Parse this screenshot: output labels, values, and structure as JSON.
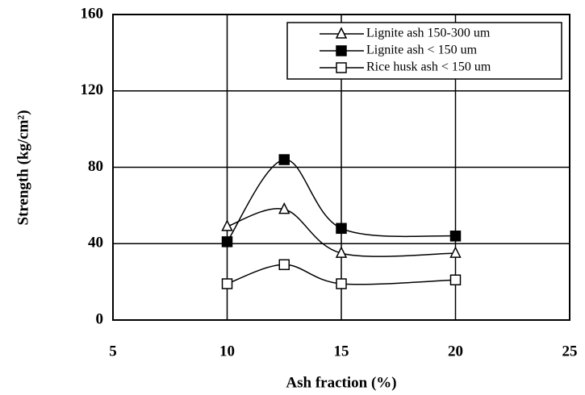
{
  "chart_data": {
    "type": "line",
    "x_label": "Ash fraction (%)",
    "y_label": "Strength (kg/cm²)",
    "xlim": [
      5,
      25
    ],
    "xticks": [
      5,
      10,
      15,
      20,
      25
    ],
    "ylim": [
      0,
      160
    ],
    "yticks": [
      0,
      40,
      80,
      120,
      160
    ],
    "grid": true,
    "legend": "top-right",
    "series": [
      {
        "name": "Lignite ash 150-300 um",
        "color": "#000000",
        "marker": "open-triangle",
        "x": [
          10,
          12.5,
          15,
          20
        ],
        "values": [
          49,
          58,
          35,
          35
        ]
      },
      {
        "name": "Lignite ash < 150 um",
        "color": "#000000",
        "marker": "filled-square",
        "x": [
          10,
          12.5,
          15,
          20
        ],
        "values": [
          41,
          84,
          48,
          44
        ]
      },
      {
        "name": "Rice husk  ash < 150 um",
        "color": "#000000",
        "marker": "open-square",
        "x": [
          10,
          12.5,
          15,
          20
        ],
        "values": [
          19,
          29,
          19,
          21
        ]
      }
    ]
  }
}
